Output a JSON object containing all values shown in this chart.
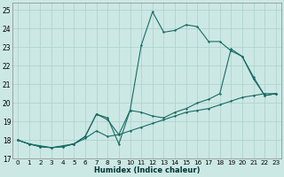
{
  "bg_color": "#cce8e4",
  "grid_color": "#aacfcb",
  "line_color": "#1a6b65",
  "xlabel": "Humidex (Indice chaleur)",
  "xlim": [
    -0.5,
    23.5
  ],
  "ylim": [
    17,
    25.4
  ],
  "xticks": [
    0,
    1,
    2,
    3,
    4,
    5,
    6,
    7,
    8,
    9,
    10,
    11,
    12,
    13,
    14,
    15,
    16,
    17,
    18,
    19,
    20,
    21,
    22,
    23
  ],
  "yticks": [
    17,
    18,
    19,
    20,
    21,
    22,
    23,
    24,
    25
  ],
  "line1_x": [
    0,
    1,
    2,
    3,
    4,
    5,
    6,
    7,
    8,
    9,
    10,
    11,
    12,
    13,
    14,
    15,
    16,
    17,
    18,
    19,
    20,
    21,
    22,
    23
  ],
  "line1_y": [
    18.0,
    17.8,
    17.7,
    17.6,
    17.7,
    17.8,
    18.1,
    18.5,
    18.2,
    18.3,
    18.5,
    18.7,
    18.9,
    19.1,
    19.3,
    19.5,
    19.6,
    19.7,
    19.9,
    20.1,
    20.3,
    20.4,
    20.5,
    20.5
  ],
  "line2_x": [
    0,
    1,
    2,
    3,
    4,
    5,
    6,
    7,
    8,
    9,
    10,
    11,
    12,
    13,
    14,
    15,
    16,
    17,
    18,
    19,
    20,
    21,
    22,
    23
  ],
  "line2_y": [
    18.0,
    17.8,
    17.65,
    17.6,
    17.65,
    17.8,
    18.2,
    19.4,
    19.2,
    17.8,
    19.6,
    23.1,
    24.9,
    23.8,
    23.9,
    24.2,
    24.1,
    23.3,
    23.3,
    22.8,
    22.5,
    21.3,
    20.4,
    20.5
  ],
  "line3_x": [
    0,
    1,
    2,
    3,
    4,
    5,
    6,
    7,
    8,
    9,
    10,
    11,
    12,
    13,
    14,
    15,
    16,
    17,
    18,
    19,
    20,
    21,
    22,
    23
  ],
  "line3_y": [
    18.0,
    17.8,
    17.65,
    17.6,
    17.65,
    17.8,
    18.2,
    19.4,
    19.1,
    18.3,
    19.6,
    19.5,
    19.3,
    19.2,
    19.5,
    19.7,
    20.0,
    20.2,
    20.5,
    22.9,
    22.5,
    21.4,
    20.4,
    20.5
  ]
}
